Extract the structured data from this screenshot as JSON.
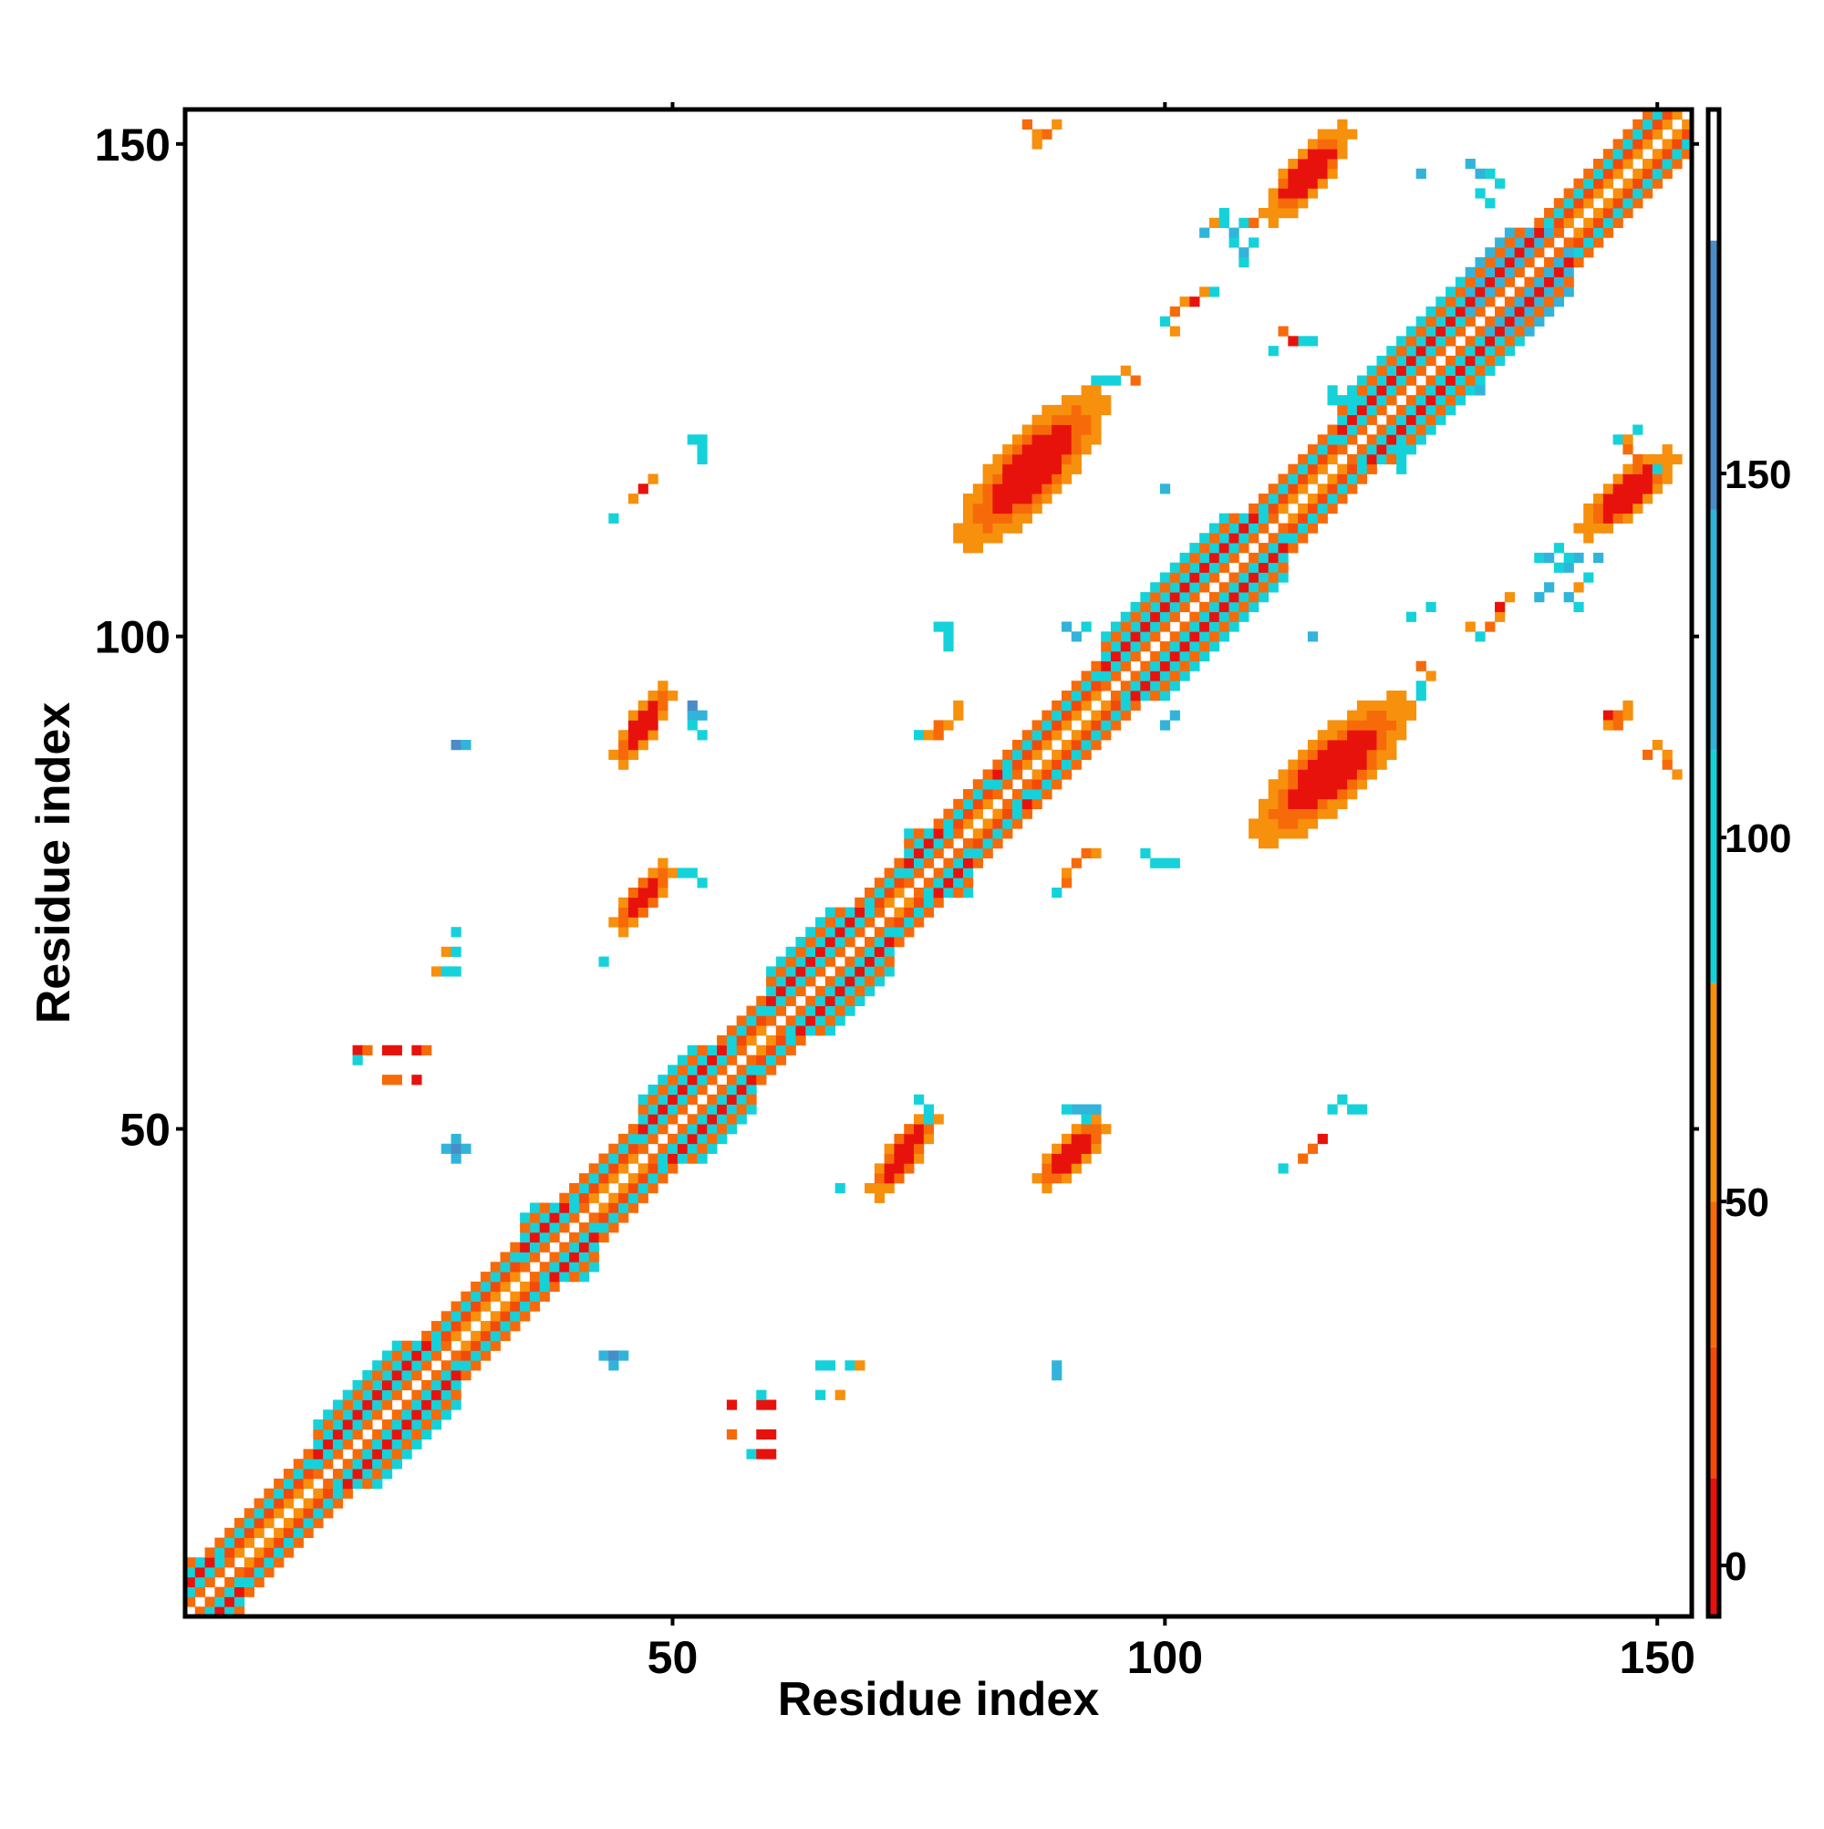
{
  "chart_data": {
    "type": "heatmap",
    "title": "",
    "xlabel": "Residue index",
    "ylabel": "Residue index",
    "xlim": [
      1,
      153
    ],
    "ylim": [
      1,
      153
    ],
    "x_ticks": [
      "50",
      "100",
      "150"
    ],
    "x_tick_values": [
      50,
      100,
      150
    ],
    "y_ticks": [
      "50",
      "100",
      "150"
    ],
    "y_tick_values": [
      50,
      100,
      150
    ],
    "grid": false,
    "legend": "right",
    "colorbar": {
      "ticks": [
        "0",
        "50",
        "100",
        "150"
      ],
      "tick_values": [
        0,
        50,
        100,
        150
      ],
      "range": [
        -7,
        200
      ],
      "bands": [
        {
          "from": -7,
          "to": 12,
          "color": "#e8120c"
        },
        {
          "from": 12,
          "to": 30,
          "color": "#f34a0a"
        },
        {
          "from": 30,
          "to": 50,
          "color": "#f76a0a"
        },
        {
          "from": 50,
          "to": 80,
          "color": "#f7900c"
        },
        {
          "from": 80,
          "to": 112,
          "color": "#15d2da"
        },
        {
          "from": 112,
          "to": 145,
          "color": "#32b4da"
        },
        {
          "from": 145,
          "to": 182,
          "color": "#4a8cc6"
        },
        {
          "from": 182,
          "to": 200,
          "color": "#ffffff"
        }
      ]
    },
    "diagonal_band": {
      "description_values": "distance value by |i-j| offset near the diagonal",
      "offset_values": [
        60,
        20,
        95,
        45
      ]
    },
    "regions": [
      {
        "i": [
          1,
          6
        ],
        "j": [
          1,
          6
        ],
        "value": 90
      },
      {
        "i": [
          14,
          28
        ],
        "j": [
          14,
          28
        ],
        "value": 100
      },
      {
        "i": [
          35,
          42
        ],
        "j": [
          35,
          42
        ],
        "value": 95
      },
      {
        "i": [
          47,
          58
        ],
        "j": [
          47,
          58
        ],
        "value": 100
      },
      {
        "i": [
          60,
          72
        ],
        "j": [
          60,
          72
        ],
        "value": 105
      },
      {
        "i": [
          74,
          80
        ],
        "j": [
          74,
          80
        ],
        "value": 95
      },
      {
        "i": [
          83,
          86
        ],
        "j": [
          83,
          86
        ],
        "value": 95
      },
      {
        "i": [
          94,
          112
        ],
        "j": [
          94,
          112
        ],
        "value": 100
      },
      {
        "i": [
          118,
          140
        ],
        "j": [
          118,
          140
        ],
        "value": 100
      },
      {
        "i": [
          131,
          141
        ],
        "j": [
          131,
          141
        ],
        "value": 140
      }
    ],
    "blobs": [
      {
        "x": [
          70,
          77
        ],
        "y": [
          43,
          52
        ],
        "value": 10
      },
      {
        "x": [
          87,
          94
        ],
        "y": [
          44,
          51
        ],
        "value": 10
      },
      {
        "x": [
          44,
          50
        ],
        "y": [
          87,
          95
        ],
        "value": 10
      },
      {
        "x": [
          44,
          50
        ],
        "y": [
          70,
          77
        ],
        "value": 10
      },
      {
        "x": [
          79,
          94
        ],
        "y": [
          109,
          125
        ],
        "value": 10
      },
      {
        "x": [
          109,
          125
        ],
        "y": [
          79,
          94
        ],
        "value": 10
      },
      {
        "x": [
          110,
          119
        ],
        "y": [
          142,
          152
        ],
        "value": 10
      },
      {
        "x": [
          142,
          152
        ],
        "y": [
          110,
          119
        ],
        "value": 10
      }
    ],
    "scatter_cells": [
      {
        "x": 27,
        "y": 48,
        "value": 140
      },
      {
        "x": 28,
        "y": 47,
        "value": 140
      },
      {
        "x": 28,
        "y": 48,
        "value": 145
      },
      {
        "x": 28,
        "y": 49,
        "value": 140
      },
      {
        "x": 29,
        "y": 48,
        "value": 140
      },
      {
        "x": 43,
        "y": 27,
        "value": 140
      },
      {
        "x": 44,
        "y": 27,
        "value": 145
      },
      {
        "x": 45,
        "y": 27,
        "value": 140
      },
      {
        "x": 44,
        "y": 26,
        "value": 140
      },
      {
        "x": 18,
        "y": 58,
        "value": 10
      },
      {
        "x": 19,
        "y": 58,
        "value": 40
      },
      {
        "x": 21,
        "y": 58,
        "value": 10
      },
      {
        "x": 22,
        "y": 58,
        "value": 10
      },
      {
        "x": 24,
        "y": 58,
        "value": 10
      },
      {
        "x": 18,
        "y": 57,
        "value": 95
      },
      {
        "x": 25,
        "y": 58,
        "value": 40
      },
      {
        "x": 21,
        "y": 55,
        "value": 40
      },
      {
        "x": 22,
        "y": 55,
        "value": 40
      },
      {
        "x": 24,
        "y": 55,
        "value": 10
      },
      {
        "x": 56,
        "y": 22,
        "value": 10
      },
      {
        "x": 59,
        "y": 22,
        "value": 10
      },
      {
        "x": 60,
        "y": 22,
        "value": 10
      },
      {
        "x": 59,
        "y": 23,
        "value": 90
      },
      {
        "x": 56,
        "y": 19,
        "value": 40
      },
      {
        "x": 59,
        "y": 19,
        "value": 10
      },
      {
        "x": 60,
        "y": 19,
        "value": 10
      },
      {
        "x": 58,
        "y": 17,
        "value": 90
      },
      {
        "x": 59,
        "y": 17,
        "value": 10
      },
      {
        "x": 60,
        "y": 17,
        "value": 10
      },
      {
        "x": 28,
        "y": 70,
        "value": 95
      },
      {
        "x": 27,
        "y": 68,
        "value": 60
      },
      {
        "x": 28,
        "y": 68,
        "value": 95
      },
      {
        "x": 26,
        "y": 66,
        "value": 60
      },
      {
        "x": 27,
        "y": 66,
        "value": 95
      },
      {
        "x": 28,
        "y": 66,
        "value": 95
      },
      {
        "x": 65,
        "y": 26,
        "value": 95
      },
      {
        "x": 66,
        "y": 26,
        "value": 95
      },
      {
        "x": 68,
        "y": 26,
        "value": 95
      },
      {
        "x": 69,
        "y": 26,
        "value": 60
      },
      {
        "x": 65,
        "y": 23,
        "value": 95
      },
      {
        "x": 67,
        "y": 23,
        "value": 60
      },
      {
        "x": 28,
        "y": 89,
        "value": 145
      },
      {
        "x": 29,
        "y": 89,
        "value": 140
      },
      {
        "x": 89,
        "y": 26,
        "value": 140
      },
      {
        "x": 89,
        "y": 25,
        "value": 140
      },
      {
        "x": 52,
        "y": 92,
        "value": 140
      },
      {
        "x": 53,
        "y": 92,
        "value": 140
      },
      {
        "x": 52,
        "y": 91,
        "value": 100
      },
      {
        "x": 53,
        "y": 90,
        "value": 95
      },
      {
        "x": 52,
        "y": 93,
        "value": 145
      },
      {
        "x": 91,
        "y": 52,
        "value": 140
      },
      {
        "x": 92,
        "y": 52,
        "value": 140
      },
      {
        "x": 90,
        "y": 52,
        "value": 100
      },
      {
        "x": 93,
        "y": 52,
        "value": 140
      },
      {
        "x": 92,
        "y": 51,
        "value": 95
      },
      {
        "x": 52,
        "y": 76,
        "value": 95
      },
      {
        "x": 53,
        "y": 75,
        "value": 95
      },
      {
        "x": 51,
        "y": 76,
        "value": 95
      },
      {
        "x": 43,
        "y": 67,
        "value": 95
      },
      {
        "x": 76,
        "y": 52,
        "value": 95
      },
      {
        "x": 75,
        "y": 53,
        "value": 95
      },
      {
        "x": 76,
        "y": 51,
        "value": 95
      },
      {
        "x": 67,
        "y": 44,
        "value": 95
      },
      {
        "x": 52,
        "y": 120,
        "value": 95
      },
      {
        "x": 53,
        "y": 120,
        "value": 95
      },
      {
        "x": 53,
        "y": 119,
        "value": 95
      },
      {
        "x": 53,
        "y": 118,
        "value": 95
      },
      {
        "x": 48,
        "y": 116,
        "value": 60
      },
      {
        "x": 47,
        "y": 115,
        "value": 10
      },
      {
        "x": 46,
        "y": 114,
        "value": 60
      },
      {
        "x": 44,
        "y": 112,
        "value": 100
      },
      {
        "x": 120,
        "y": 52,
        "value": 95
      },
      {
        "x": 119,
        "y": 52,
        "value": 95
      },
      {
        "x": 118,
        "y": 53,
        "value": 95
      },
      {
        "x": 117,
        "y": 52,
        "value": 95
      },
      {
        "x": 116,
        "y": 49,
        "value": 10
      },
      {
        "x": 115,
        "y": 48,
        "value": 40
      },
      {
        "x": 114,
        "y": 47,
        "value": 40
      },
      {
        "x": 112,
        "y": 46,
        "value": 100
      },
      {
        "x": 75,
        "y": 90,
        "value": 100
      },
      {
        "x": 76,
        "y": 90,
        "value": 60
      },
      {
        "x": 77,
        "y": 90,
        "value": 40
      },
      {
        "x": 77,
        "y": 91,
        "value": 40
      },
      {
        "x": 78,
        "y": 91,
        "value": 60
      },
      {
        "x": 79,
        "y": 92,
        "value": 60
      },
      {
        "x": 79,
        "y": 93,
        "value": 60
      },
      {
        "x": 90,
        "y": 75,
        "value": 40
      },
      {
        "x": 90,
        "y": 76,
        "value": 60
      },
      {
        "x": 91,
        "y": 77,
        "value": 40
      },
      {
        "x": 92,
        "y": 78,
        "value": 40
      },
      {
        "x": 93,
        "y": 78,
        "value": 60
      },
      {
        "x": 89,
        "y": 74,
        "value": 95
      },
      {
        "x": 99,
        "y": 77,
        "value": 95
      },
      {
        "x": 100,
        "y": 77,
        "value": 95
      },
      {
        "x": 101,
        "y": 77,
        "value": 100
      },
      {
        "x": 98,
        "y": 78,
        "value": 95
      },
      {
        "x": 78,
        "y": 101,
        "value": 95
      },
      {
        "x": 78,
        "y": 99,
        "value": 100
      },
      {
        "x": 78,
        "y": 100,
        "value": 95
      },
      {
        "x": 77,
        "y": 101,
        "value": 95
      },
      {
        "x": 90,
        "y": 101,
        "value": 140
      },
      {
        "x": 92,
        "y": 101,
        "value": 95
      },
      {
        "x": 91,
        "y": 100,
        "value": 140
      },
      {
        "x": 101,
        "y": 92,
        "value": 140
      },
      {
        "x": 100,
        "y": 91,
        "value": 140
      },
      {
        "x": 86,
        "y": 152,
        "value": 40
      },
      {
        "x": 87,
        "y": 151,
        "value": 60
      },
      {
        "x": 88,
        "y": 151,
        "value": 40
      },
      {
        "x": 89,
        "y": 152,
        "value": 60
      },
      {
        "x": 87,
        "y": 150,
        "value": 60
      },
      {
        "x": 152,
        "y": 86,
        "value": 60
      },
      {
        "x": 151,
        "y": 87,
        "value": 40
      },
      {
        "x": 151,
        "y": 88,
        "value": 60
      },
      {
        "x": 150,
        "y": 89,
        "value": 60
      },
      {
        "x": 149,
        "y": 88,
        "value": 40
      },
      {
        "x": 106,
        "y": 143,
        "value": 95
      },
      {
        "x": 107,
        "y": 141,
        "value": 140
      },
      {
        "x": 108,
        "y": 142,
        "value": 95
      },
      {
        "x": 105,
        "y": 142,
        "value": 60
      },
      {
        "x": 106,
        "y": 142,
        "value": 95
      },
      {
        "x": 109,
        "y": 142,
        "value": 40
      },
      {
        "x": 107,
        "y": 140,
        "value": 95
      },
      {
        "x": 104,
        "y": 141,
        "value": 140
      },
      {
        "x": 143,
        "y": 106,
        "value": 95
      },
      {
        "x": 141,
        "y": 107,
        "value": 140
      },
      {
        "x": 142,
        "y": 108,
        "value": 95
      },
      {
        "x": 142,
        "y": 105,
        "value": 60
      },
      {
        "x": 140,
        "y": 107,
        "value": 95
      },
      {
        "x": 141,
        "y": 104,
        "value": 140
      },
      {
        "x": 102,
        "y": 134,
        "value": 60
      },
      {
        "x": 103,
        "y": 134,
        "value": 10
      },
      {
        "x": 104,
        "y": 135,
        "value": 60
      },
      {
        "x": 105,
        "y": 135,
        "value": 95
      },
      {
        "x": 101,
        "y": 133,
        "value": 40
      },
      {
        "x": 100,
        "y": 132,
        "value": 95
      },
      {
        "x": 101,
        "y": 131,
        "value": 60
      },
      {
        "x": 134,
        "y": 102,
        "value": 60
      },
      {
        "x": 134,
        "y": 103,
        "value": 10
      },
      {
        "x": 135,
        "y": 104,
        "value": 60
      },
      {
        "x": 133,
        "y": 101,
        "value": 40
      },
      {
        "x": 132,
        "y": 100,
        "value": 95
      },
      {
        "x": 131,
        "y": 101,
        "value": 60
      },
      {
        "x": 94,
        "y": 126,
        "value": 95
      },
      {
        "x": 95,
        "y": 126,
        "value": 95
      },
      {
        "x": 96,
        "y": 127,
        "value": 60
      },
      {
        "x": 97,
        "y": 126,
        "value": 40
      },
      {
        "x": 93,
        "y": 126,
        "value": 95
      },
      {
        "x": 126,
        "y": 94,
        "value": 95
      },
      {
        "x": 126,
        "y": 95,
        "value": 95
      },
      {
        "x": 127,
        "y": 96,
        "value": 60
      },
      {
        "x": 126,
        "y": 97,
        "value": 40
      },
      {
        "x": 117,
        "y": 124,
        "value": 95
      },
      {
        "x": 118,
        "y": 124,
        "value": 95
      },
      {
        "x": 119,
        "y": 124,
        "value": 95
      },
      {
        "x": 117,
        "y": 125,
        "value": 95
      },
      {
        "x": 118,
        "y": 122,
        "value": 95
      },
      {
        "x": 100,
        "y": 115,
        "value": 140
      },
      {
        "x": 124,
        "y": 117,
        "value": 95
      },
      {
        "x": 124,
        "y": 118,
        "value": 95
      },
      {
        "x": 124,
        "y": 119,
        "value": 95
      },
      {
        "x": 115,
        "y": 100,
        "value": 140
      },
      {
        "x": 131,
        "y": 148,
        "value": 140
      },
      {
        "x": 132,
        "y": 147,
        "value": 140
      },
      {
        "x": 133,
        "y": 147,
        "value": 95
      },
      {
        "x": 134,
        "y": 146,
        "value": 95
      },
      {
        "x": 132,
        "y": 145,
        "value": 95
      },
      {
        "x": 133,
        "y": 144,
        "value": 95
      },
      {
        "x": 126,
        "y": 147,
        "value": 140
      },
      {
        "x": 132,
        "y": 125,
        "value": 140
      },
      {
        "x": 138,
        "y": 104,
        "value": 140
      },
      {
        "x": 142,
        "y": 103,
        "value": 95
      },
      {
        "x": 127,
        "y": 103,
        "value": 95
      },
      {
        "x": 125,
        "y": 102,
        "value": 95
      },
      {
        "x": 138,
        "y": 108,
        "value": 95
      },
      {
        "x": 139,
        "y": 108,
        "value": 140
      },
      {
        "x": 140,
        "y": 109,
        "value": 95
      },
      {
        "x": 141,
        "y": 108,
        "value": 95
      },
      {
        "x": 142,
        "y": 108,
        "value": 140
      },
      {
        "x": 144,
        "y": 108,
        "value": 140
      },
      {
        "x": 139,
        "y": 105,
        "value": 140
      },
      {
        "x": 108,
        "y": 138,
        "value": 95
      },
      {
        "x": 108,
        "y": 139,
        "value": 140
      },
      {
        "x": 109,
        "y": 140,
        "value": 95
      },
      {
        "x": 146,
        "y": 120,
        "value": 95
      },
      {
        "x": 147,
        "y": 120,
        "value": 60
      },
      {
        "x": 147,
        "y": 119,
        "value": 40
      },
      {
        "x": 148,
        "y": 121,
        "value": 95
      },
      {
        "x": 148,
        "y": 118,
        "value": 40
      },
      {
        "x": 149,
        "y": 118,
        "value": 60
      },
      {
        "x": 150,
        "y": 117,
        "value": 95
      },
      {
        "x": 115,
        "y": 130,
        "value": 95
      },
      {
        "x": 114,
        "y": 130,
        "value": 95
      },
      {
        "x": 111,
        "y": 129,
        "value": 95
      },
      {
        "x": 112,
        "y": 131,
        "value": 40
      },
      {
        "x": 113,
        "y": 130,
        "value": 10
      },
      {
        "x": 145,
        "y": 92,
        "value": 10
      },
      {
        "x": 145,
        "y": 91,
        "value": 60
      },
      {
        "x": 146,
        "y": 91,
        "value": 40
      },
      {
        "x": 146,
        "y": 92,
        "value": 40
      },
      {
        "x": 147,
        "y": 92,
        "value": 60
      },
      {
        "x": 147,
        "y": 93,
        "value": 60
      }
    ]
  }
}
